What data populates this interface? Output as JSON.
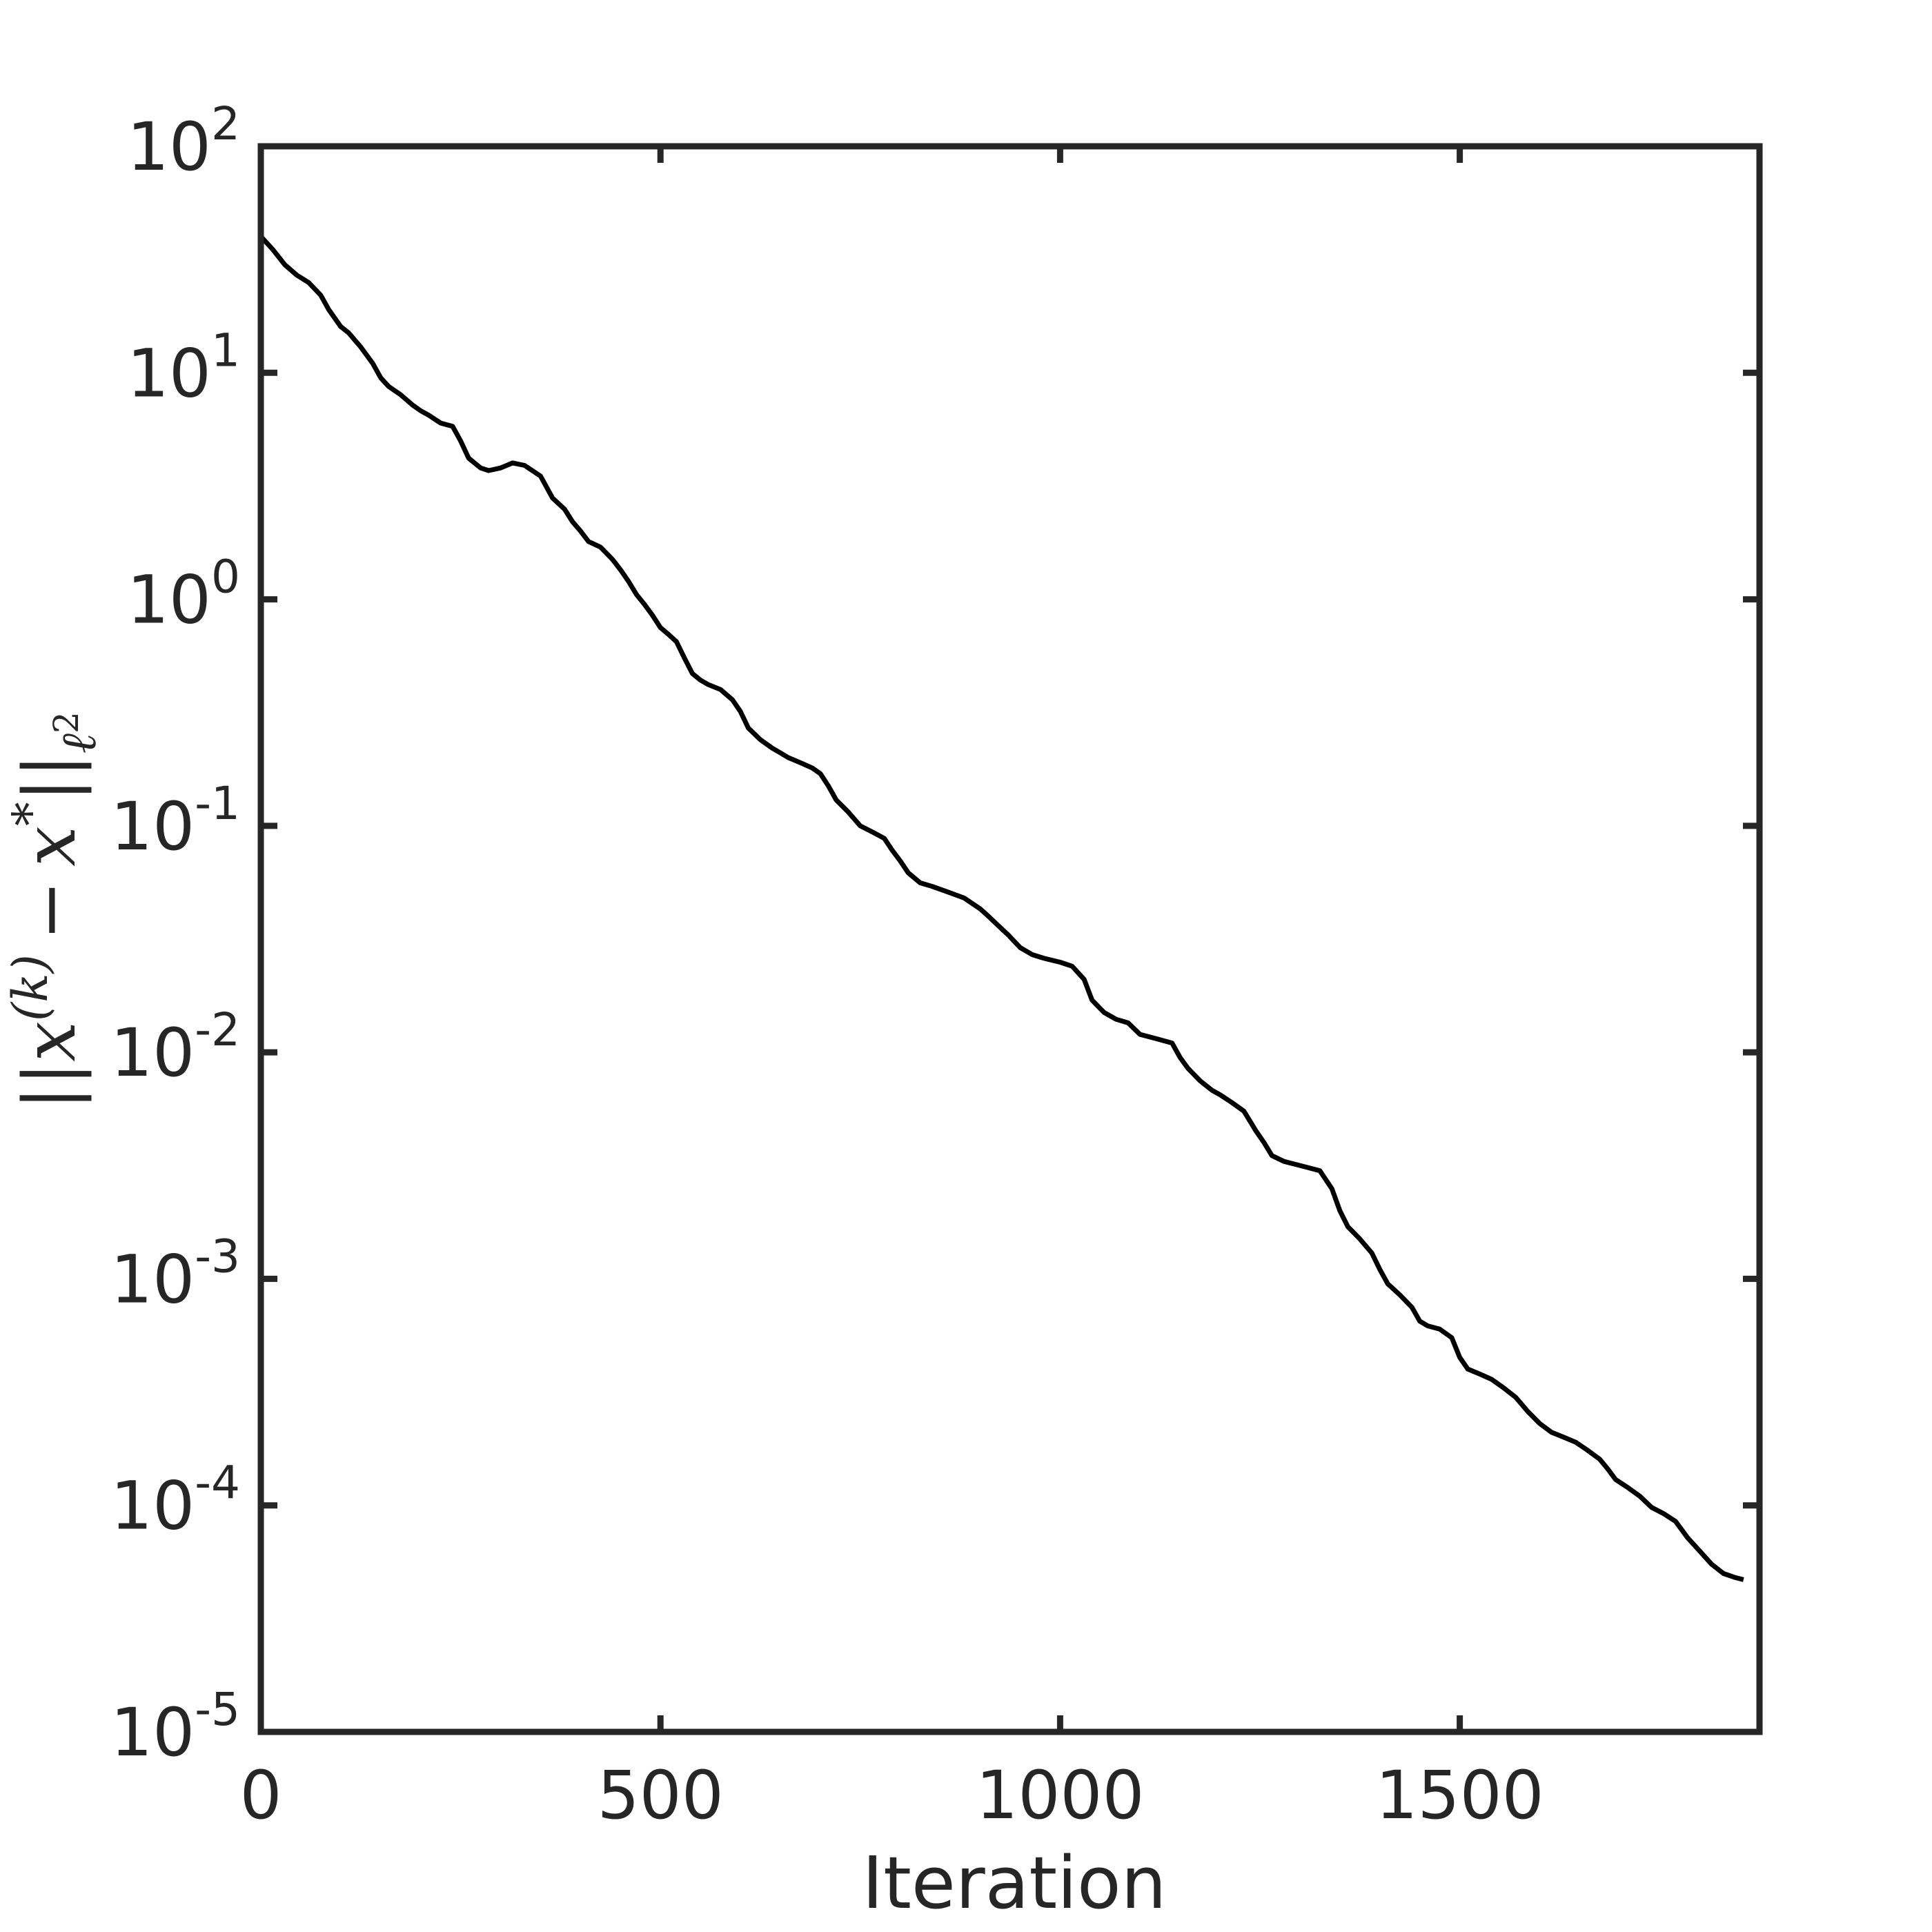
{
  "chart_data": {
    "type": "line",
    "title": "",
    "xlabel": "Iteration",
    "ylabel": "||x^(k) − x*||_ℓ2",
    "ylabel_parts": {
      "open": "||",
      "x1": "x",
      "sup": "(k)",
      "minus": "−",
      "x2": "x",
      "star": "*",
      "close": "||",
      "sub": "ℓ",
      "subsup": "2"
    },
    "xscale": "linear",
    "yscale": "log",
    "xlim": [
      0,
      1875
    ],
    "ylim": [
      1e-05,
      100
    ],
    "grid": false,
    "x_ticks": [
      {
        "value": 0,
        "label": "0"
      },
      {
        "value": 500,
        "label": "500"
      },
      {
        "value": 1000,
        "label": "1000"
      },
      {
        "value": 1500,
        "label": "1500"
      }
    ],
    "y_ticks": [
      {
        "value": 100,
        "base": "10",
        "exp": "2"
      },
      {
        "value": 10,
        "base": "10",
        "exp": "1"
      },
      {
        "value": 1,
        "base": "10",
        "exp": "0"
      },
      {
        "value": 0.1,
        "base": "10",
        "exp": "-1"
      },
      {
        "value": 0.01,
        "base": "10",
        "exp": "-2"
      },
      {
        "value": 0.001,
        "base": "10",
        "exp": "-3"
      },
      {
        "value": 0.0001,
        "base": "10",
        "exp": "-4"
      },
      {
        "value": 1e-05,
        "base": "10",
        "exp": "-5"
      }
    ],
    "line_color": "#000000",
    "axis_color": "#262626",
    "series": [
      {
        "x": [
          0,
          15,
          30,
          45,
          60,
          75,
          85,
          100,
          110,
          125,
          140,
          150,
          160,
          175,
          190,
          200,
          210,
          225,
          240,
          250,
          260,
          275,
          285,
          300,
          315,
          330,
          350,
          365,
          380,
          390,
          400,
          410,
          425,
          440,
          450,
          460,
          470,
          480,
          490,
          500,
          510,
          520,
          530,
          540,
          550,
          560,
          575,
          590,
          600,
          610,
          625,
          640,
          650,
          660,
          675,
          690,
          700,
          710,
          720,
          735,
          750,
          765,
          780,
          790,
          800,
          810,
          825,
          840,
          860,
          880,
          900,
          910,
          920,
          935,
          950,
          965,
          980,
          1000,
          1015,
          1030,
          1040,
          1055,
          1070,
          1085,
          1100,
          1120,
          1140,
          1150,
          1160,
          1175,
          1190,
          1200,
          1215,
          1230,
          1245,
          1255,
          1265,
          1280,
          1295,
          1310,
          1325,
          1340,
          1350,
          1360,
          1375,
          1390,
          1400,
          1410,
          1425,
          1440,
          1450,
          1460,
          1475,
          1490,
          1500,
          1510,
          1525,
          1540,
          1555,
          1570,
          1585,
          1600,
          1615,
          1630,
          1645,
          1660,
          1675,
          1685,
          1695,
          1710,
          1725,
          1740,
          1755,
          1770,
          1785,
          1800,
          1815,
          1830,
          1845,
          1855
        ],
        "y": [
          40,
          35,
          30,
          27,
          25,
          22,
          19,
          16,
          15,
          13,
          11,
          9.5,
          8.7,
          8.0,
          7.2,
          6.8,
          6.5,
          6.0,
          5.8,
          5.0,
          4.2,
          3.8,
          3.7,
          3.8,
          4.0,
          3.9,
          3.5,
          2.8,
          2.5,
          2.2,
          2.0,
          1.8,
          1.7,
          1.5,
          1.35,
          1.2,
          1.05,
          0.95,
          0.85,
          0.75,
          0.7,
          0.65,
          0.55,
          0.47,
          0.44,
          0.42,
          0.4,
          0.36,
          0.32,
          0.27,
          0.24,
          0.22,
          0.21,
          0.2,
          0.19,
          0.18,
          0.17,
          0.15,
          0.13,
          0.115,
          0.1,
          0.094,
          0.088,
          0.078,
          0.07,
          0.062,
          0.056,
          0.054,
          0.051,
          0.048,
          0.043,
          0.04,
          0.037,
          0.033,
          0.029,
          0.027,
          0.026,
          0.025,
          0.024,
          0.021,
          0.017,
          0.015,
          0.014,
          0.0135,
          0.012,
          0.0115,
          0.011,
          0.0095,
          0.0085,
          0.0075,
          0.0068,
          0.0065,
          0.006,
          0.0055,
          0.0045,
          0.004,
          0.0035,
          0.0033,
          0.0032,
          0.0031,
          0.003,
          0.0025,
          0.002,
          0.0017,
          0.0015,
          0.0013,
          0.0011,
          0.00095,
          0.00085,
          0.00075,
          0.00065,
          0.00062,
          0.0006,
          0.00055,
          0.00045,
          0.0004,
          0.00038,
          0.00036,
          0.00033,
          0.0003,
          0.00026,
          0.00023,
          0.00021,
          0.0002,
          0.00019,
          0.000175,
          0.00016,
          0.000145,
          0.00013,
          0.00012,
          0.00011,
          9.8e-05,
          9.2e-05,
          8.5e-05,
          7.2e-05,
          6.3e-05,
          5.5e-05,
          5e-05,
          4.8e-05,
          4.7e-05
        ]
      }
    ]
  }
}
